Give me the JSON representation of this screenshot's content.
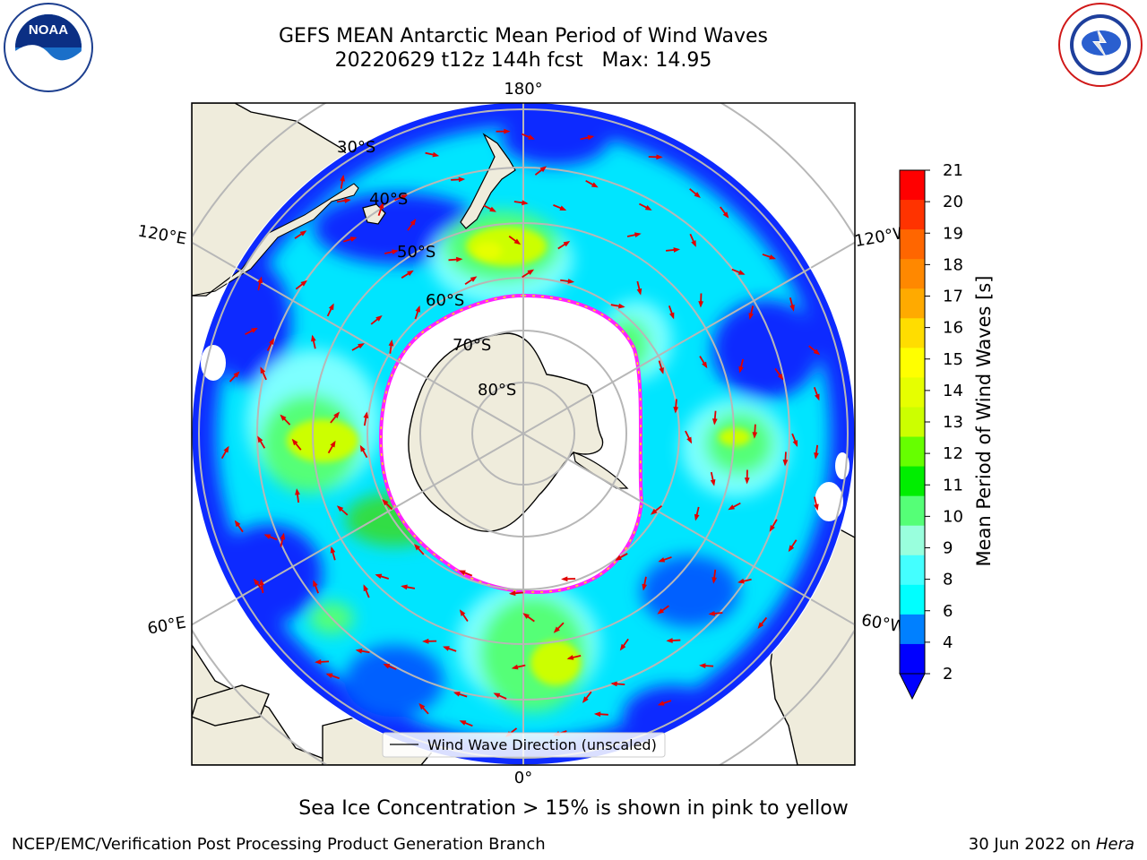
{
  "title_line1": "GEFS MEAN Antarctic Mean Period of Wind Waves",
  "title_line2": "20220629 t12z 144h fcst   Max: 14.95",
  "lon_labels": {
    "top": "180°",
    "bottom": "0°",
    "left_upper": "120°E",
    "left_lower": "60°E",
    "right_upper": "120°W",
    "right_lower": "60°W"
  },
  "lat_labels": [
    "30°S",
    "40°S",
    "50°S",
    "60°S",
    "70°S",
    "80°S"
  ],
  "legend_label": "Wind Wave Direction (unscaled)",
  "colorbar": {
    "label": "Mean Period of Wind Waves [s]",
    "ticks": [
      "21",
      "20",
      "19",
      "18",
      "17",
      "16",
      "15",
      "14",
      "13",
      "12",
      "11",
      "10",
      "9",
      "8",
      "6",
      "4",
      "2"
    ],
    "colors": [
      "#ff0000",
      "#ff3300",
      "#ff6600",
      "#ff8800",
      "#ffaa00",
      "#ffdd00",
      "#ffff00",
      "#e6ff00",
      "#ccff00",
      "#66ff00",
      "#00ee00",
      "#55ff77",
      "#99ffdd",
      "#44ffff",
      "#00ffff",
      "#0080ff",
      "#0000ff"
    ],
    "extend": "min"
  },
  "caption": "Sea Ice Concentration > 15% is shown in pink to yellow",
  "footer_left": "NCEP/EMC/Verification Post Processing Product Generation Branch",
  "footer_date": "30 Jun 2022 on ",
  "footer_host": "Hera",
  "logos": [
    "noaa-logo",
    "national-weather-service-logo"
  ]
}
